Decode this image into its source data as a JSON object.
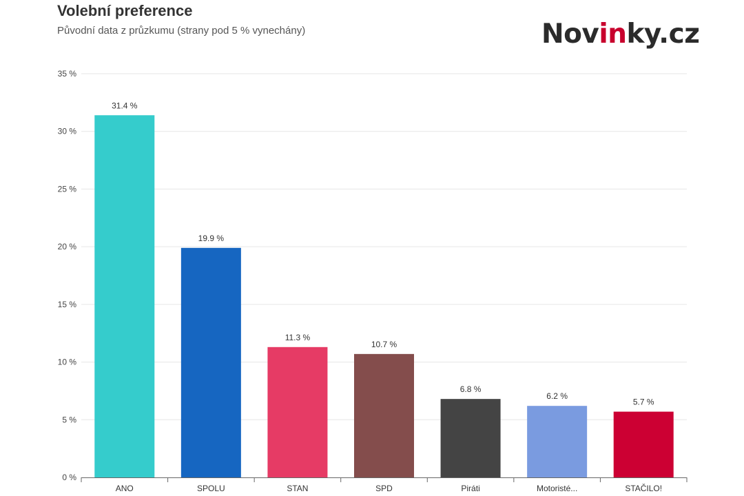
{
  "header": {
    "title": "Volební preference",
    "subtitle": "Původní data z průzkumu (strany pod 5 % vynechány)"
  },
  "logo": {
    "part1": "Nov",
    "part2": "in",
    "part3": "ky.cz",
    "color_dark": "#2b2b2b",
    "color_accent": "#c8002d"
  },
  "chart_data": {
    "type": "bar",
    "title": "Volební preference",
    "subtitle": "Původní data z průzkumu (strany pod 5 % vynechány)",
    "categories": [
      "ANO",
      "SPOLU",
      "STAN",
      "SPD",
      "Piráti",
      "Motoristé...",
      "STAČILO!"
    ],
    "values": [
      31.4,
      19.9,
      11.3,
      10.7,
      6.8,
      6.2,
      5.7
    ],
    "data_labels": [
      "31.4 %",
      "19.9 %",
      "11.3 %",
      "10.7 %",
      "6.8 %",
      "6.2 %",
      "5.7 %"
    ],
    "colors": [
      "#35cccc",
      "#1666c1",
      "#e63b65",
      "#844d4c",
      "#444444",
      "#7a9be0",
      "#cc0033"
    ],
    "xlabel": "",
    "ylabel": "",
    "ylim": [
      0,
      35
    ],
    "yticks": [
      0,
      5,
      10,
      15,
      20,
      25,
      30,
      35
    ],
    "ytick_labels": [
      "0 %",
      "5 %",
      "10 %",
      "15 %",
      "20 %",
      "25 %",
      "30 %",
      "35 %"
    ],
    "grid": true,
    "legend": "none"
  }
}
